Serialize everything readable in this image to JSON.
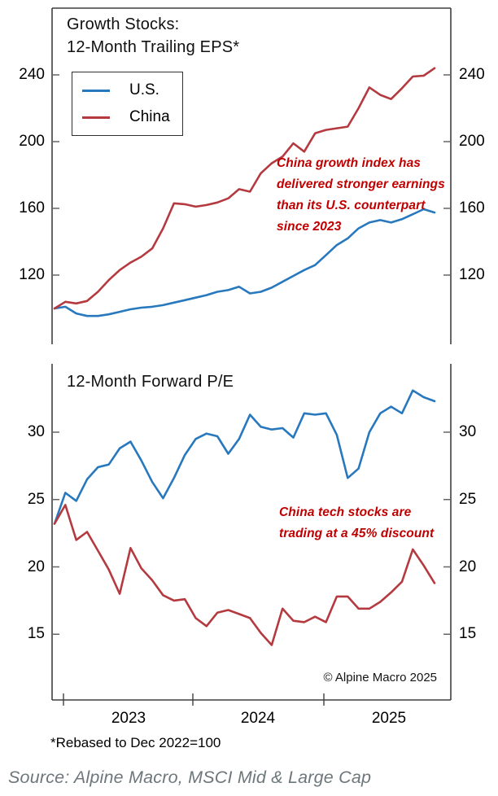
{
  "figure": {
    "panel1_title": "Growth Stocks:\n12-Month Trailing EPS*",
    "panel2_title": "12-Month Forward P/E",
    "annotation_eps": "China growth index has\ndelivered stronger earnings\nthan its U.S. counterpart\nsince 2023",
    "annotation_pe": "China tech stocks are\ntrading at a 45% discount",
    "copyright": "© Alpine Macro 2025",
    "footnote": "*Rebased to Dec 2022=100",
    "source": "Source: Alpine Macro, MSCI Mid & Large Cap"
  },
  "colors": {
    "us": "#2878BE",
    "china": "#B43A40",
    "annotation": "#C00000",
    "axis": "#3f3f3f",
    "tick": "#666666"
  },
  "chart_data": {
    "type": "line",
    "x_axis": {
      "year_labels": [
        "2023",
        "2024",
        "2025"
      ]
    },
    "panels": [
      {
        "title": "Growth Stocks: 12-Month Trailing EPS (rebased to Dec 2022=100)",
        "y_ticks": [
          240,
          200,
          160,
          120
        ],
        "ylim": [
          78,
          280
        ],
        "series": [
          {
            "name": "U.S.",
            "color_key": "us",
            "values": [
              100,
              101,
              97,
              95.5,
              95.5,
              96.5,
              98,
              99.5,
              100.5,
              101,
              102,
              103.5,
              105,
              106.5,
              108,
              110,
              111,
              113,
              109,
              110,
              112.5,
              116,
              119.5,
              123,
              126,
              132,
              138,
              142,
              148,
              151.5,
              153,
              151.5,
              153.5,
              156.5,
              159.5,
              157.5
            ]
          },
          {
            "name": "China",
            "color_key": "china",
            "values": [
              100,
              104,
              103,
              104.5,
              110,
              117,
              123,
              127.5,
              131,
              136,
              148,
              163,
              162.5,
              161,
              162,
              163.5,
              166,
              171.5,
              170,
              181,
              187,
              191,
              199,
              194,
              205,
              207,
              208,
              209,
              220,
              232.5,
              228,
              225.5,
              232,
              239,
              239.5,
              244
            ]
          }
        ]
      },
      {
        "title": "12-Month Forward P/E",
        "y_ticks": [
          30,
          25,
          20,
          15
        ],
        "ylim": [
          10,
          35
        ],
        "series": [
          {
            "name": "U.S.",
            "color_key": "us",
            "values": [
              23.2,
              25.5,
              24.9,
              26.5,
              27.4,
              27.6,
              28.8,
              29.3,
              27.9,
              26.3,
              25.1,
              26.6,
              28.3,
              29.5,
              29.9,
              29.7,
              28.4,
              29.5,
              31.3,
              30.4,
              30.2,
              30.3,
              29.6,
              31.4,
              31.3,
              31.4,
              29.8,
              26.6,
              27.3,
              30,
              31.4,
              31.9,
              31.4,
              33.1,
              32.6,
              32.3
            ]
          },
          {
            "name": "China",
            "color_key": "china",
            "values": [
              23.2,
              24.6,
              22,
              22.6,
              21.2,
              19.8,
              18,
              21.4,
              19.9,
              19,
              17.9,
              17.5,
              17.6,
              16.2,
              15.6,
              16.6,
              16.8,
              16.5,
              16.2,
              15.1,
              14.2,
              16.9,
              16,
              15.9,
              16.3,
              15.9,
              17.8,
              17.8,
              16.9,
              16.9,
              17.4,
              18.1,
              18.9,
              21.3,
              20.1,
              18.8
            ]
          }
        ]
      }
    ]
  }
}
